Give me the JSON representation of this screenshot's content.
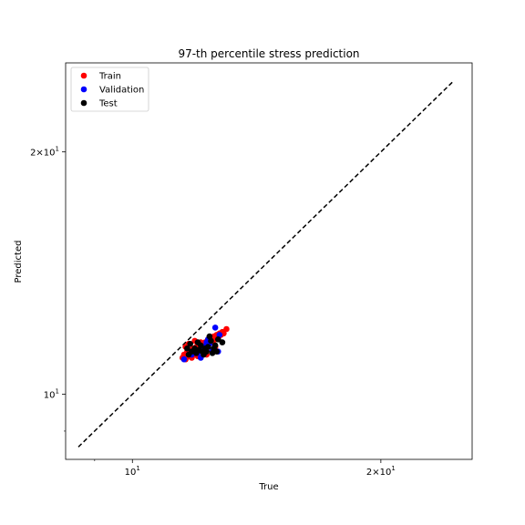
{
  "chart_data": {
    "type": "scatter",
    "title": "97-th percentile stress prediction",
    "xlabel": "True",
    "ylabel": "Predicted",
    "xscale": "log",
    "yscale": "log",
    "xlim": [
      8.3,
      25.8
    ],
    "ylim": [
      8.3,
      25.8
    ],
    "x_ticks": [
      {
        "value": 10,
        "label": "10",
        "exp": "1"
      },
      {
        "value": 20,
        "label": "2×10",
        "exp": "1"
      }
    ],
    "y_ticks": [
      {
        "value": 10,
        "label": "10",
        "exp": "1"
      },
      {
        "value": 20,
        "label": "2×10",
        "exp": "1"
      }
    ],
    "grid": false,
    "legend_position": "top-left",
    "reference_line": {
      "style": "dashed",
      "color": "#000000",
      "x": [
        8.6,
        24.5
      ],
      "y": [
        8.6,
        24.5
      ]
    },
    "series": [
      {
        "name": "Train",
        "color": "#ff0000",
        "points": [
          [
            11.5,
            11.1
          ],
          [
            11.55,
            11.2
          ],
          [
            11.6,
            11.05
          ],
          [
            11.65,
            11.3
          ],
          [
            11.7,
            11.15
          ],
          [
            11.75,
            11.35
          ],
          [
            11.8,
            11.25
          ],
          [
            11.85,
            11.4
          ],
          [
            11.9,
            11.2
          ],
          [
            11.95,
            11.45
          ],
          [
            12.0,
            11.3
          ],
          [
            12.05,
            11.5
          ],
          [
            12.1,
            11.35
          ],
          [
            12.15,
            11.55
          ],
          [
            12.2,
            11.4
          ],
          [
            12.25,
            11.6
          ],
          [
            12.3,
            11.5
          ],
          [
            12.35,
            11.7
          ],
          [
            12.4,
            11.55
          ],
          [
            12.45,
            11.75
          ],
          [
            12.5,
            11.6
          ],
          [
            12.55,
            11.8
          ],
          [
            12.6,
            11.7
          ],
          [
            12.65,
            11.85
          ],
          [
            12.7,
            11.75
          ],
          [
            12.75,
            11.9
          ],
          [
            12.8,
            11.85
          ],
          [
            12.85,
            11.95
          ],
          [
            12.9,
            11.9
          ],
          [
            13.0,
            12.05
          ],
          [
            11.7,
            11.55
          ],
          [
            12.0,
            11.15
          ],
          [
            12.3,
            11.2
          ],
          [
            11.6,
            11.45
          ],
          [
            12.5,
            11.3
          ],
          [
            11.9,
            11.65
          ],
          [
            12.2,
            11.25
          ],
          [
            12.6,
            11.45
          ],
          [
            11.8,
            11.1
          ],
          [
            12.1,
            11.6
          ]
        ]
      },
      {
        "name": "Validation",
        "color": "#0000ff",
        "points": [
          [
            11.55,
            11.05
          ],
          [
            11.8,
            11.2
          ],
          [
            12.0,
            11.25
          ],
          [
            12.1,
            11.1
          ],
          [
            12.2,
            11.45
          ],
          [
            12.3,
            11.6
          ],
          [
            12.4,
            11.55
          ],
          [
            12.5,
            11.35
          ],
          [
            12.6,
            12.1
          ],
          [
            12.7,
            11.3
          ],
          [
            12.75,
            11.85
          ],
          [
            12.35,
            11.7
          ]
        ]
      },
      {
        "name": "Test",
        "color": "#000000",
        "points": [
          [
            11.65,
            11.4
          ],
          [
            11.75,
            11.55
          ],
          [
            11.8,
            11.3
          ],
          [
            11.9,
            11.4
          ],
          [
            11.95,
            11.25
          ],
          [
            12.05,
            11.35
          ],
          [
            12.1,
            11.5
          ],
          [
            12.15,
            11.3
          ],
          [
            12.2,
            11.2
          ],
          [
            12.25,
            11.4
          ],
          [
            12.3,
            11.3
          ],
          [
            12.4,
            11.8
          ],
          [
            12.45,
            11.65
          ],
          [
            12.5,
            11.25
          ],
          [
            12.55,
            11.4
          ],
          [
            12.6,
            11.5
          ],
          [
            12.65,
            11.3
          ],
          [
            12.7,
            11.7
          ],
          [
            12.85,
            11.6
          ],
          [
            12.0,
            11.6
          ],
          [
            11.7,
            11.2
          ],
          [
            12.35,
            11.45
          ]
        ]
      }
    ]
  }
}
